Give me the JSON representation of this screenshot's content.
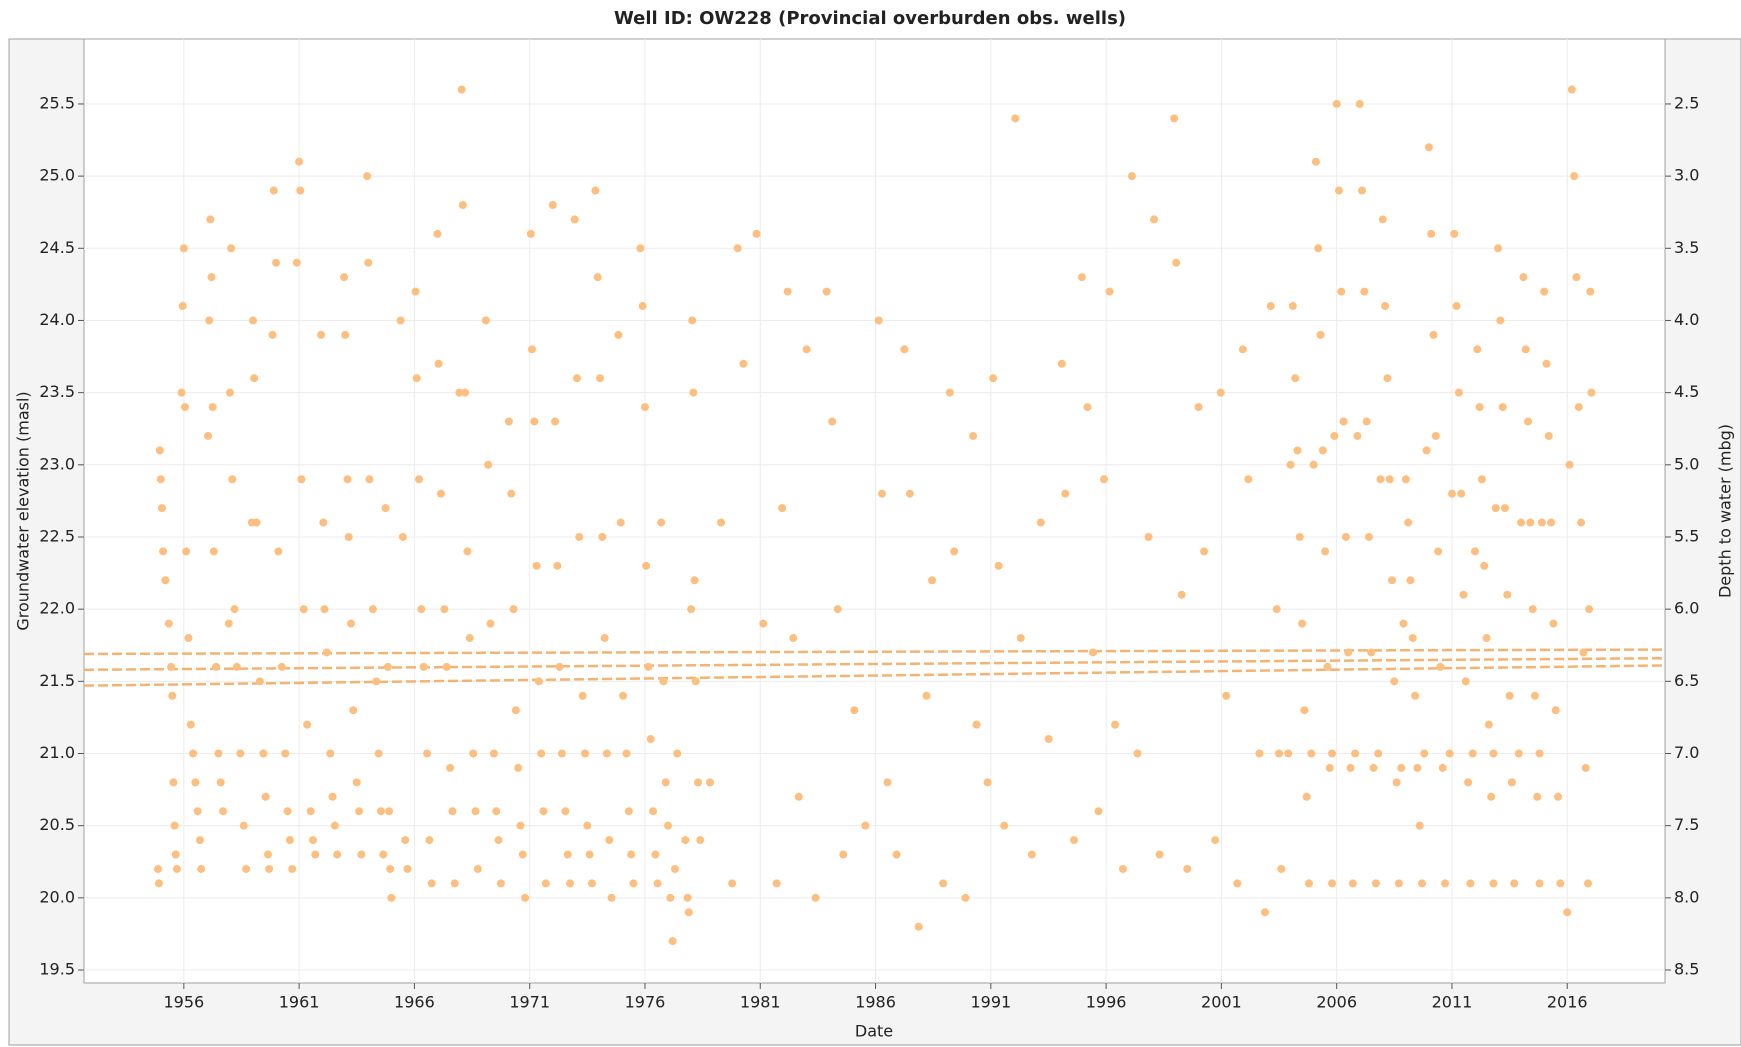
{
  "chart_data": {
    "type": "scatter",
    "title": "Well ID: OW228 (Provincial overburden obs. wells)",
    "xlabel": "Date",
    "ylabel": "Groundwater elevation (masl)",
    "y2label": "Depth to water (mbg)",
    "xlim": [
      1951.67,
      2020.24
    ],
    "xticks": [
      1956,
      1961,
      1966,
      1971,
      1976,
      1981,
      1986,
      1991,
      1996,
      2001,
      2006,
      2011,
      2016
    ],
    "ylim": [
      19.41,
      25.95
    ],
    "yticks": [
      19.5,
      {
        "value": 20,
        "label": "20.0"
      },
      20.5,
      {
        "value": 21,
        "label": "21.0"
      },
      21.5,
      {
        "value": 22,
        "label": "22.0"
      },
      22.5,
      {
        "value": 23,
        "label": "23.0"
      },
      23.5,
      {
        "value": 24,
        "label": "24.0"
      },
      24.5,
      {
        "value": 25,
        "label": "25.0"
      },
      25.5
    ],
    "y2lim": [
      8.59,
      2.05
    ],
    "y2ticks": [
      2.5,
      {
        "value": 3,
        "label": "3.0"
      },
      3.5,
      {
        "value": 4,
        "label": "4.0"
      },
      4.5,
      {
        "value": 5,
        "label": "5.0"
      },
      5.5,
      {
        "value": 6,
        "label": "6.0"
      },
      6.5,
      {
        "value": 7,
        "label": "7.0"
      },
      7.5,
      {
        "value": 8,
        "label": "8.0"
      },
      8.5
    ],
    "grid": true,
    "series": [
      {
        "color": "#fdbf7f",
        "x": [
          1954.88,
          1954.92,
          1954.96,
          1955.0,
          1955.05,
          1955.1,
          1955.2,
          1955.35,
          1955.45,
          1955.5,
          1955.55,
          1955.6,
          1955.65,
          1955.7,
          1955.9,
          1955.95,
          1956.0,
          1956.05,
          1956.1,
          1956.2,
          1956.3,
          1956.4,
          1956.5,
          1956.6,
          1956.7,
          1956.75,
          1957.05,
          1957.1,
          1957.15,
          1957.2,
          1957.25,
          1957.3,
          1957.4,
          1957.5,
          1957.6,
          1957.7,
          1957.95,
          1958.0,
          1958.05,
          1958.1,
          1958.2,
          1958.3,
          1958.45,
          1958.6,
          1958.7,
          1958.95,
          1959.0,
          1959.05,
          1959.15,
          1959.3,
          1959.45,
          1959.55,
          1959.65,
          1959.7,
          1959.85,
          1959.9,
          1960.0,
          1960.1,
          1960.25,
          1960.4,
          1960.5,
          1960.6,
          1960.7,
          1960.9,
          1961.0,
          1961.05,
          1961.1,
          1961.2,
          1961.35,
          1961.5,
          1961.6,
          1961.7,
          1961.95,
          1962.05,
          1962.1,
          1962.2,
          1962.35,
          1962.45,
          1962.55,
          1962.65,
          1962.95,
          1963.0,
          1963.1,
          1963.15,
          1963.25,
          1963.35,
          1963.5,
          1963.6,
          1963.7,
          1963.95,
          1964.0,
          1964.05,
          1964.2,
          1964.35,
          1964.45,
          1964.55,
          1964.65,
          1964.75,
          1964.85,
          1964.9,
          1964.95,
          1965.0,
          1965.4,
          1965.5,
          1965.6,
          1965.7,
          1966.05,
          1966.1,
          1966.2,
          1966.3,
          1966.4,
          1966.55,
          1966.65,
          1966.75,
          1967.0,
          1967.05,
          1967.15,
          1967.3,
          1967.4,
          1967.55,
          1967.65,
          1967.75,
          1967.95,
          1968.05,
          1968.1,
          1968.2,
          1968.3,
          1968.4,
          1968.55,
          1968.65,
          1968.75,
          1969.1,
          1969.2,
          1969.3,
          1969.45,
          1969.55,
          1969.65,
          1969.75,
          1970.1,
          1970.2,
          1970.3,
          1970.4,
          1970.5,
          1970.6,
          1970.7,
          1970.8,
          1971.05,
          1971.1,
          1971.2,
          1971.3,
          1971.4,
          1971.5,
          1971.6,
          1971.7,
          1972.0,
          1972.1,
          1972.2,
          1972.3,
          1972.4,
          1972.55,
          1972.65,
          1972.75,
          1972.95,
          1973.05,
          1973.15,
          1973.3,
          1973.4,
          1973.5,
          1973.6,
          1973.7,
          1973.85,
          1973.95,
          1974.05,
          1974.15,
          1974.25,
          1974.35,
          1974.45,
          1974.55,
          1974.85,
          1974.95,
          1975.05,
          1975.2,
          1975.3,
          1975.4,
          1975.5,
          1975.8,
          1975.9,
          1976.0,
          1976.05,
          1976.15,
          1976.25,
          1976.35,
          1976.45,
          1976.55,
          1976.7,
          1976.8,
          1976.9,
          1977.0,
          1977.1,
          1977.2,
          1977.3,
          1977.4,
          1977.75,
          1977.85,
          1977.9,
          1978.0,
          1978.05,
          1978.1,
          1978.15,
          1978.2,
          1978.3,
          1978.4,
          1978.82,
          1979.3,
          1979.78,
          1980.02,
          1980.27,
          1980.84,
          1981.13,
          1981.71,
          1981.95,
          1982.19,
          1982.43,
          1982.67,
          1983.01,
          1983.4,
          1983.88,
          1984.12,
          1984.36,
          1984.6,
          1985.08,
          1985.56,
          1986.14,
          1986.28,
          1986.52,
          1986.91,
          1987.25,
          1987.49,
          1987.87,
          1988.21,
          1988.45,
          1988.93,
          1989.22,
          1989.41,
          1989.9,
          1990.23,
          1990.38,
          1990.86,
          1991.1,
          1991.34,
          1991.58,
          1992.06,
          1992.3,
          1992.78,
          1993.17,
          1993.51,
          1994.08,
          1994.23,
          1994.61,
          1994.95,
          1995.19,
          1995.43,
          1995.67,
          1995.91,
          1996.15,
          1996.39,
          1996.73,
          1997.12,
          1997.36,
          1997.84,
          1998.08,
          1998.32,
          1998.95,
          1999.04,
          1999.28,
          1999.52,
          2000.01,
          2000.25,
          2000.73,
          2000.97,
          2001.21,
          2001.69,
          2001.93,
          2002.17,
          2002.65,
          2002.89,
          2003.14,
          2003.4,
          2003.5,
          2003.6,
          2003.9,
          2004.0,
          2004.1,
          2004.2,
          2004.3,
          2004.4,
          2004.5,
          2004.6,
          2004.7,
          2004.8,
          2004.9,
          2005.0,
          2005.1,
          2005.2,
          2005.3,
          2005.4,
          2005.5,
          2005.6,
          2005.7,
          2005.8,
          2005.8,
          2005.9,
          2006.0,
          2006.1,
          2006.2,
          2006.3,
          2006.4,
          2006.5,
          2006.6,
          2006.7,
          2006.8,
          2006.9,
          2007.0,
          2007.1,
          2007.2,
          2007.3,
          2007.4,
          2007.5,
          2007.6,
          2007.7,
          2007.8,
          2007.9,
          2008.0,
          2008.1,
          2008.2,
          2008.3,
          2008.4,
          2008.5,
          2008.6,
          2008.7,
          2008.8,
          2008.9,
          2009.0,
          2009.1,
          2009.2,
          2009.3,
          2009.4,
          2009.5,
          2009.6,
          2009.7,
          2009.8,
          2009.9,
          2010.0,
          2010.1,
          2010.2,
          2010.3,
          2010.4,
          2010.5,
          2010.6,
          2010.7,
          2010.9,
          2011.0,
          2011.1,
          2011.2,
          2011.3,
          2011.4,
          2011.5,
          2011.6,
          2011.7,
          2011.8,
          2011.9,
          2012.0,
          2012.1,
          2012.2,
          2012.3,
          2012.4,
          2012.5,
          2012.6,
          2012.7,
          2012.8,
          2012.8,
          2012.9,
          2013.0,
          2013.1,
          2013.2,
          2013.3,
          2013.4,
          2013.5,
          2013.6,
          2013.7,
          2013.9,
          2014.0,
          2014.1,
          2014.2,
          2014.3,
          2014.4,
          2014.5,
          2014.6,
          2014.7,
          2014.8,
          2014.8,
          2014.9,
          2015.0,
          2015.1,
          2015.2,
          2015.3,
          2015.4,
          2015.5,
          2015.6,
          2015.7,
          2016.0,
          2016.1,
          2016.2,
          2016.3,
          2016.4,
          2016.5,
          2016.6,
          2016.7,
          2016.8,
          2016.9,
          2016.95,
          2017.0,
          2017.05
        ],
        "values": [
          20.2,
          20.1,
          23.1,
          22.9,
          22.7,
          22.4,
          22.2,
          21.9,
          21.6,
          21.4,
          20.8,
          20.5,
          20.3,
          20.2,
          23.5,
          24.1,
          24.5,
          23.4,
          22.4,
          21.8,
          21.2,
          21.0,
          20.8,
          20.6,
          20.4,
          20.2,
          23.2,
          24.0,
          24.7,
          24.3,
          23.4,
          22.4,
          21.6,
          21.0,
          20.8,
          20.6,
          21.9,
          23.5,
          24.5,
          22.9,
          22.0,
          21.6,
          21.0,
          20.5,
          20.2,
          22.6,
          24.0,
          23.6,
          22.6,
          21.5,
          21.0,
          20.7,
          20.3,
          20.2,
          23.9,
          24.9,
          24.4,
          22.4,
          21.6,
          21.0,
          20.6,
          20.4,
          20.2,
          24.4,
          25.1,
          24.9,
          22.9,
          22.0,
          21.2,
          20.6,
          20.4,
          20.3,
          23.9,
          22.6,
          22.0,
          21.7,
          21.0,
          20.7,
          20.5,
          20.3,
          24.3,
          23.9,
          22.9,
          22.5,
          21.9,
          21.3,
          20.8,
          20.6,
          20.3,
          25.0,
          24.4,
          22.9,
          22.0,
          21.5,
          21.0,
          20.6,
          20.3,
          22.7,
          21.6,
          20.6,
          20.2,
          20.0,
          24.0,
          22.5,
          20.4,
          20.2,
          24.2,
          23.6,
          22.9,
          22.0,
          21.6,
          21.0,
          20.4,
          20.1,
          24.6,
          23.7,
          22.8,
          22.0,
          21.6,
          20.9,
          20.6,
          20.1,
          23.5,
          25.6,
          24.8,
          23.5,
          22.4,
          21.8,
          21.0,
          20.6,
          20.2,
          24.0,
          23.0,
          21.9,
          21.0,
          20.6,
          20.4,
          20.1,
          23.3,
          22.8,
          22.0,
          21.3,
          20.9,
          20.5,
          20.3,
          20.0,
          24.6,
          23.8,
          23.3,
          22.3,
          21.5,
          21.0,
          20.6,
          20.1,
          24.8,
          23.3,
          22.3,
          21.6,
          21.0,
          20.6,
          20.3,
          20.1,
          24.7,
          23.6,
          22.5,
          21.4,
          21.0,
          20.5,
          20.3,
          20.1,
          24.9,
          24.3,
          23.6,
          22.5,
          21.8,
          21.0,
          20.4,
          20.0,
          23.9,
          22.6,
          21.4,
          21.0,
          20.6,
          20.3,
          20.1,
          24.5,
          24.1,
          23.4,
          22.3,
          21.6,
          21.1,
          20.6,
          20.3,
          20.1,
          22.6,
          21.5,
          20.8,
          20.5,
          20.0,
          19.7,
          20.2,
          21.0,
          20.4,
          20.0,
          19.9,
          22.0,
          24.0,
          23.5,
          22.2,
          21.5,
          20.8,
          20.4,
          20.8,
          22.6,
          20.1,
          24.5,
          23.7,
          24.6,
          21.9,
          20.1,
          22.7,
          24.2,
          21.8,
          20.7,
          23.8,
          20.0,
          24.2,
          23.3,
          22.0,
          20.3,
          21.3,
          20.5,
          24.0,
          22.8,
          20.8,
          20.3,
          23.8,
          22.8,
          19.8,
          21.4,
          22.2,
          20.1,
          23.5,
          22.4,
          20.0,
          23.2,
          21.2,
          20.8,
          23.6,
          22.3,
          20.5,
          25.4,
          21.8,
          20.3,
          22.6,
          21.1,
          23.7,
          22.8,
          20.4,
          24.3,
          23.4,
          21.7,
          20.6,
          22.9,
          24.2,
          21.2,
          20.2,
          25.0,
          21.0,
          22.5,
          24.7,
          20.3,
          25.4,
          24.4,
          22.1,
          20.2,
          23.4,
          22.4,
          20.4,
          23.5,
          21.4,
          20.1,
          23.8,
          22.9,
          21.0,
          19.9,
          24.1,
          22.0,
          21.0,
          20.2,
          21.0,
          23.0,
          24.1,
          23.6,
          23.1,
          22.5,
          21.9,
          21.3,
          20.7,
          20.1,
          21.0,
          23.0,
          25.1,
          24.5,
          23.9,
          23.1,
          22.4,
          21.6,
          20.9,
          20.1,
          21.0,
          23.2,
          25.5,
          24.9,
          24.2,
          23.3,
          22.5,
          21.7,
          20.9,
          20.1,
          21.0,
          23.2,
          25.5,
          24.9,
          24.2,
          23.3,
          22.5,
          21.7,
          20.9,
          20.1,
          21.0,
          22.9,
          24.7,
          24.1,
          23.6,
          22.9,
          22.2,
          21.5,
          20.8,
          20.1,
          20.9,
          21.9,
          22.9,
          22.6,
          22.2,
          21.8,
          21.4,
          20.9,
          20.5,
          20.1,
          21.0,
          23.1,
          25.2,
          24.6,
          23.9,
          23.2,
          22.4,
          21.6,
          20.9,
          20.1,
          21.0,
          22.8,
          24.6,
          24.1,
          23.5,
          22.8,
          22.1,
          21.5,
          20.8,
          20.1,
          21.0,
          22.4,
          23.8,
          23.4,
          22.9,
          22.3,
          21.8,
          21.2,
          20.7,
          20.1,
          21.0,
          22.7,
          24.5,
          24.0,
          23.4,
          22.7,
          22.1,
          21.4,
          20.8,
          20.1,
          21.0,
          22.6,
          24.3,
          23.8,
          23.3,
          22.6,
          22.0,
          21.4,
          20.7,
          20.1,
          21.0,
          22.6,
          24.2,
          23.7,
          23.2,
          22.6,
          21.9,
          21.3,
          20.7,
          20.1,
          19.9,
          23.0,
          25.6,
          25.0,
          24.3,
          23.4,
          22.6,
          21.7,
          20.9,
          20.1,
          22.0,
          24.2,
          23.5
        ]
      }
    ],
    "lines": [
      {
        "color": "#f5b270",
        "x": [
          1951.67,
          2020.24
        ],
        "values": [
          21.69,
          21.72
        ]
      },
      {
        "color": "#f5b270",
        "x": [
          1951.67,
          2020.24
        ],
        "values": [
          21.58,
          21.66
        ]
      },
      {
        "color": "#f5b270",
        "x": [
          1951.67,
          2020.24
        ],
        "values": [
          21.47,
          21.61
        ]
      }
    ]
  }
}
